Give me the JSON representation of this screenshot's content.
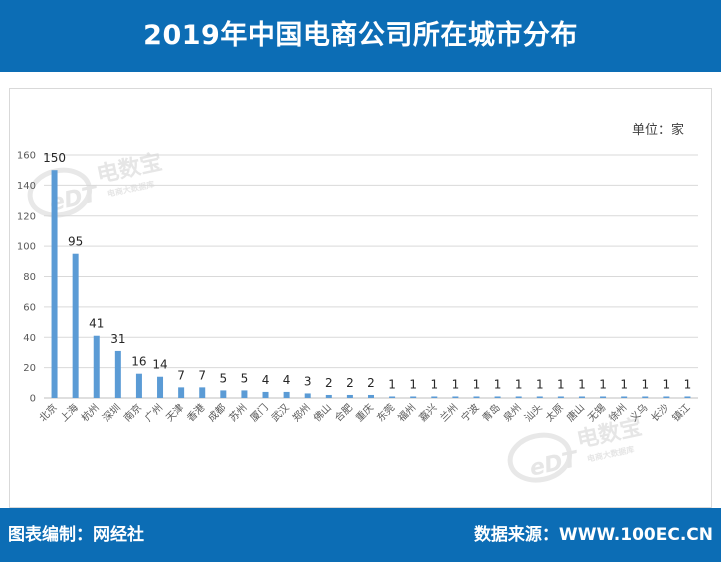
{
  "header": {
    "title": "2019年中国电商公司所在城市分布"
  },
  "unit_label": "单位：家",
  "watermark": {
    "brand": "电数宝",
    "sub": "电商大数据库",
    "logo": "eDT"
  },
  "footer": {
    "left": "图表编制：网经社",
    "right": "数据来源：WWW.100EC.CN"
  },
  "colors": {
    "header": "#0c6db5",
    "bar": "#5b9bd5",
    "grid": "#d9d9d9"
  },
  "chart_data": {
    "type": "bar",
    "title": "2019年中国电商公司所在城市分布",
    "ylabel": "单位：家",
    "ylim": [
      0,
      160
    ],
    "yticks": [
      0,
      20,
      40,
      60,
      80,
      100,
      120,
      140,
      160
    ],
    "grid": true,
    "categories": [
      "北京",
      "上海",
      "杭州",
      "深圳",
      "南京",
      "广州",
      "天津",
      "香港",
      "成都",
      "苏州",
      "厦门",
      "武汉",
      "郑州",
      "佛山",
      "合肥",
      "重庆",
      "东莞",
      "福州",
      "嘉兴",
      "兰州",
      "宁波",
      "青岛",
      "泉州",
      "汕头",
      "太原",
      "唐山",
      "无锡",
      "徐州",
      "义乌",
      "长沙",
      "镇江"
    ],
    "values": [
      150,
      95,
      41,
      31,
      16,
      14,
      7,
      7,
      5,
      5,
      4,
      4,
      3,
      2,
      2,
      2,
      1,
      1,
      1,
      1,
      1,
      1,
      1,
      1,
      1,
      1,
      1,
      1,
      1,
      1,
      1
    ]
  }
}
